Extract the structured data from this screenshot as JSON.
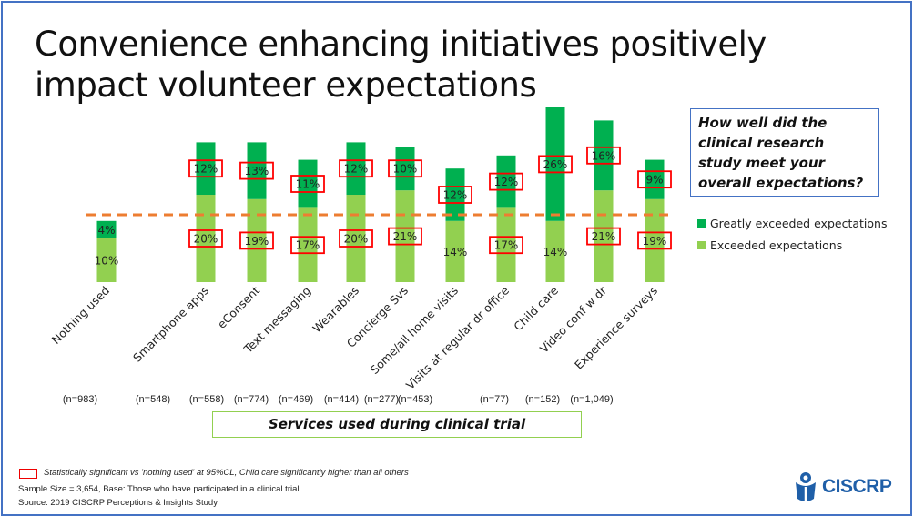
{
  "title_lines": [
    "Convenience enhancing initiatives positively",
    "impact volunteer expectations"
  ],
  "question_box": "How well did the clinical research study meet your overall expectations?",
  "x_axis_box": "Services used during clinical trial",
  "legend_note": "Statistically significant vs 'nothing used' at 95%CL, Child care significantly higher than all others",
  "footer": {
    "sample": "Sample Size = 3,654, Base: Those who have participated in a clinical trial",
    "source": "Source: 2019 CISCRP Perceptions & Insights Study"
  },
  "logo_text": "CISCRP",
  "colors": {
    "greatly": "#00B050",
    "exceeded": "#92D050",
    "reference_line": "#ED7D31",
    "significance_box": "#FF0000",
    "frame": "#4472C4"
  },
  "n_labels": [
    "(n=983)",
    "(n=548)",
    "(n=558)",
    "(n=774)",
    "(n=469)",
    "(n=414)",
    "(n=277)",
    "(n=453)",
    "(n=77)",
    "(n=152)",
    "(n=1,049)"
  ],
  "chart_data": {
    "type": "bar",
    "stacked": true,
    "categories": [
      "Nothing used",
      "Smartphone apps",
      "eConsent",
      "Text messaging",
      "Wearables",
      "Concierge Svs",
      "Some/all home visits",
      "Visits at regular dr office",
      "Child care",
      "Video conf w dr",
      "Experience surveys"
    ],
    "series": [
      {
        "name": "Exceeded expectations",
        "values": [
          10,
          20,
          19,
          17,
          20,
          21,
          14,
          17,
          14,
          21,
          19
        ],
        "significant": [
          false,
          true,
          true,
          true,
          true,
          true,
          false,
          true,
          false,
          true,
          true
        ]
      },
      {
        "name": "Greatly exceeded expectations",
        "values": [
          4,
          12,
          13,
          11,
          12,
          10,
          12,
          12,
          26,
          16,
          9
        ],
        "significant": [
          false,
          true,
          true,
          true,
          true,
          true,
          true,
          true,
          true,
          true,
          true
        ]
      }
    ],
    "value_format": "percent",
    "reference_line": "dashed",
    "legend": "right",
    "grid": false
  }
}
